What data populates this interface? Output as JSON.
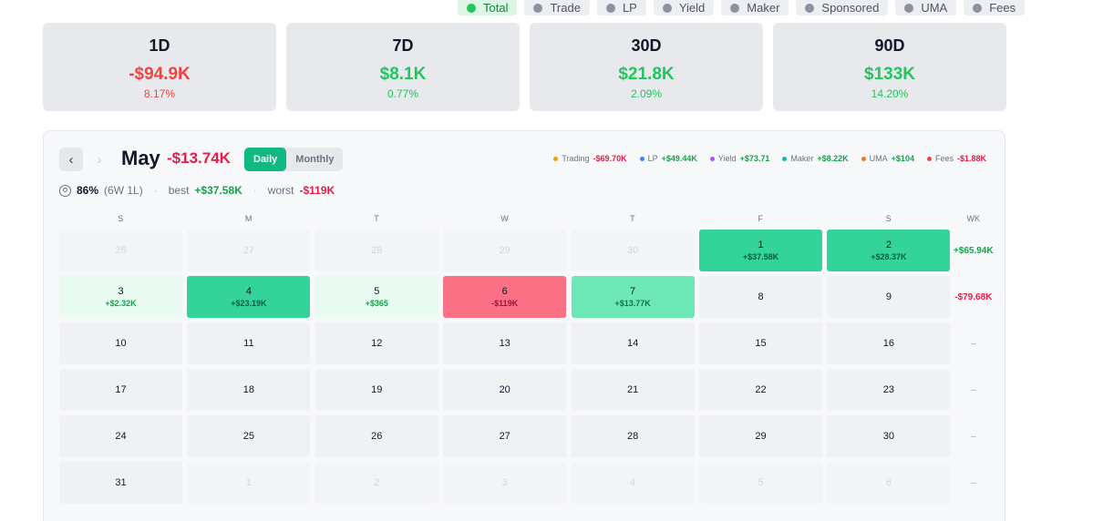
{
  "filters": [
    {
      "label": "Total",
      "active": true
    },
    {
      "label": "Trade",
      "active": false
    },
    {
      "label": "LP",
      "active": false
    },
    {
      "label": "Yield",
      "active": false
    },
    {
      "label": "Maker",
      "active": false
    },
    {
      "label": "Sponsored",
      "active": false
    },
    {
      "label": "UMA",
      "active": false
    },
    {
      "label": "Fees",
      "active": false
    }
  ],
  "cards": [
    {
      "label": "1D",
      "value": "-$94.9K",
      "pct": "8.17%",
      "sign": "neg"
    },
    {
      "label": "7D",
      "value": "$8.1K",
      "pct": "0.77%",
      "sign": "pos"
    },
    {
      "label": "30D",
      "value": "$21.8K",
      "pct": "2.09%",
      "sign": "pos"
    },
    {
      "label": "90D",
      "value": "$133K",
      "pct": "14.20%",
      "sign": "pos"
    }
  ],
  "calendar": {
    "prev_icon": "‹",
    "next_icon": "›",
    "month": "May",
    "month_total": "-$13.74K",
    "modes": [
      {
        "label": "Daily",
        "active": true
      },
      {
        "label": "Monthly",
        "active": false
      }
    ],
    "legend": [
      {
        "label": "Trading",
        "value": "-$69.70K",
        "color": "#f59e0b",
        "value_color": "#e11d48"
      },
      {
        "label": "LP",
        "value": "+$49.44K",
        "color": "#3b82f6",
        "value_color": "#16a34a"
      },
      {
        "label": "Yield",
        "value": "+$73.71",
        "color": "#a855f7",
        "value_color": "#16a34a"
      },
      {
        "label": "Maker",
        "value": "+$8.22K",
        "color": "#14b8a6",
        "value_color": "#16a34a"
      },
      {
        "label": "UMA",
        "value": "+$104",
        "color": "#f97316",
        "value_color": "#16a34a"
      },
      {
        "label": "Fees",
        "value": "-$1.88K",
        "color": "#ef4444",
        "value_color": "#e11d48"
      }
    ],
    "summary": {
      "win_rate": "86%",
      "record": "(6W 1L)",
      "best_label": "best",
      "best_value": "+$37.58K",
      "worst_label": "worst",
      "worst_value": "-$119K",
      "separator": "·"
    },
    "weekdays": [
      "S",
      "M",
      "T",
      "W",
      "T",
      "F",
      "S"
    ],
    "week_header": "WK",
    "weeks": [
      {
        "days": [
          {
            "day": "26",
            "out": true
          },
          {
            "day": "27",
            "out": true
          },
          {
            "day": "28",
            "out": true
          },
          {
            "day": "29",
            "out": true
          },
          {
            "day": "30",
            "out": true
          },
          {
            "day": "1",
            "value": "+$37.58K",
            "bg": "#34d399",
            "vcolor": "#065f46"
          },
          {
            "day": "2",
            "value": "+$28.37K",
            "bg": "#34d399",
            "vcolor": "#065f46"
          }
        ],
        "total": "+$65.94K",
        "total_sign": "pos"
      },
      {
        "days": [
          {
            "day": "3",
            "value": "+$2.32K",
            "bg": "#e9faf1",
            "vcolor": "#16a34a"
          },
          {
            "day": "4",
            "value": "+$23.19K",
            "bg": "#34d399",
            "vcolor": "#065f46"
          },
          {
            "day": "5",
            "value": "+$365",
            "bg": "#e9faf1",
            "vcolor": "#16a34a"
          },
          {
            "day": "6",
            "value": "-$119K",
            "bg": "#fb7185",
            "vcolor": "#9f1239"
          },
          {
            "day": "7",
            "value": "+$13.77K",
            "bg": "#6ee7b7",
            "vcolor": "#047857"
          },
          {
            "day": "8"
          },
          {
            "day": "9"
          }
        ],
        "total": "-$79.68K",
        "total_sign": "neg"
      },
      {
        "days": [
          {
            "day": "10"
          },
          {
            "day": "11"
          },
          {
            "day": "12"
          },
          {
            "day": "13"
          },
          {
            "day": "14"
          },
          {
            "day": "15"
          },
          {
            "day": "16"
          }
        ],
        "total": "–",
        "total_sign": "none"
      },
      {
        "days": [
          {
            "day": "17"
          },
          {
            "day": "18"
          },
          {
            "day": "19"
          },
          {
            "day": "20"
          },
          {
            "day": "21"
          },
          {
            "day": "22"
          },
          {
            "day": "23"
          }
        ],
        "total": "–",
        "total_sign": "none"
      },
      {
        "days": [
          {
            "day": "24"
          },
          {
            "day": "25"
          },
          {
            "day": "26"
          },
          {
            "day": "27"
          },
          {
            "day": "28"
          },
          {
            "day": "29"
          },
          {
            "day": "30"
          }
        ],
        "total": "–",
        "total_sign": "none"
      },
      {
        "days": [
          {
            "day": "31"
          },
          {
            "day": "1",
            "out": true
          },
          {
            "day": "2",
            "out": true
          },
          {
            "day": "3",
            "out": true
          },
          {
            "day": "4",
            "out": true
          },
          {
            "day": "5",
            "out": true
          },
          {
            "day": "6",
            "out": true
          }
        ],
        "total": "–",
        "total_sign": "none"
      }
    ]
  }
}
